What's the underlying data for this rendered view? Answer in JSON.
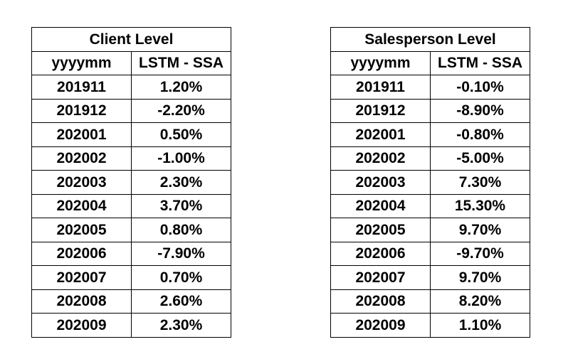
{
  "client": {
    "title": "Client Level",
    "headers": [
      "yyyymm",
      "LSTM - SSA"
    ],
    "rows": [
      [
        "201911",
        "1.20%"
      ],
      [
        "201912",
        "-2.20%"
      ],
      [
        "202001",
        "0.50%"
      ],
      [
        "202002",
        "-1.00%"
      ],
      [
        "202003",
        "2.30%"
      ],
      [
        "202004",
        "3.70%"
      ],
      [
        "202005",
        "0.80%"
      ],
      [
        "202006",
        "-7.90%"
      ],
      [
        "202007",
        "0.70%"
      ],
      [
        "202008",
        "2.60%"
      ],
      [
        "202009",
        "2.30%"
      ]
    ]
  },
  "salesperson": {
    "title": "Salesperson Level",
    "headers": [
      "yyyymm",
      "LSTM - SSA"
    ],
    "rows": [
      [
        "201911",
        "-0.10%"
      ],
      [
        "201912",
        "-8.90%"
      ],
      [
        "202001",
        "-0.80%"
      ],
      [
        "202002",
        "-5.00%"
      ],
      [
        "202003",
        "7.30%"
      ],
      [
        "202004",
        "15.30%"
      ],
      [
        "202005",
        "9.70%"
      ],
      [
        "202006",
        "-9.70%"
      ],
      [
        "202007",
        "9.70%"
      ],
      [
        "202008",
        "8.20%"
      ],
      [
        "202009",
        "1.10%"
      ]
    ]
  }
}
